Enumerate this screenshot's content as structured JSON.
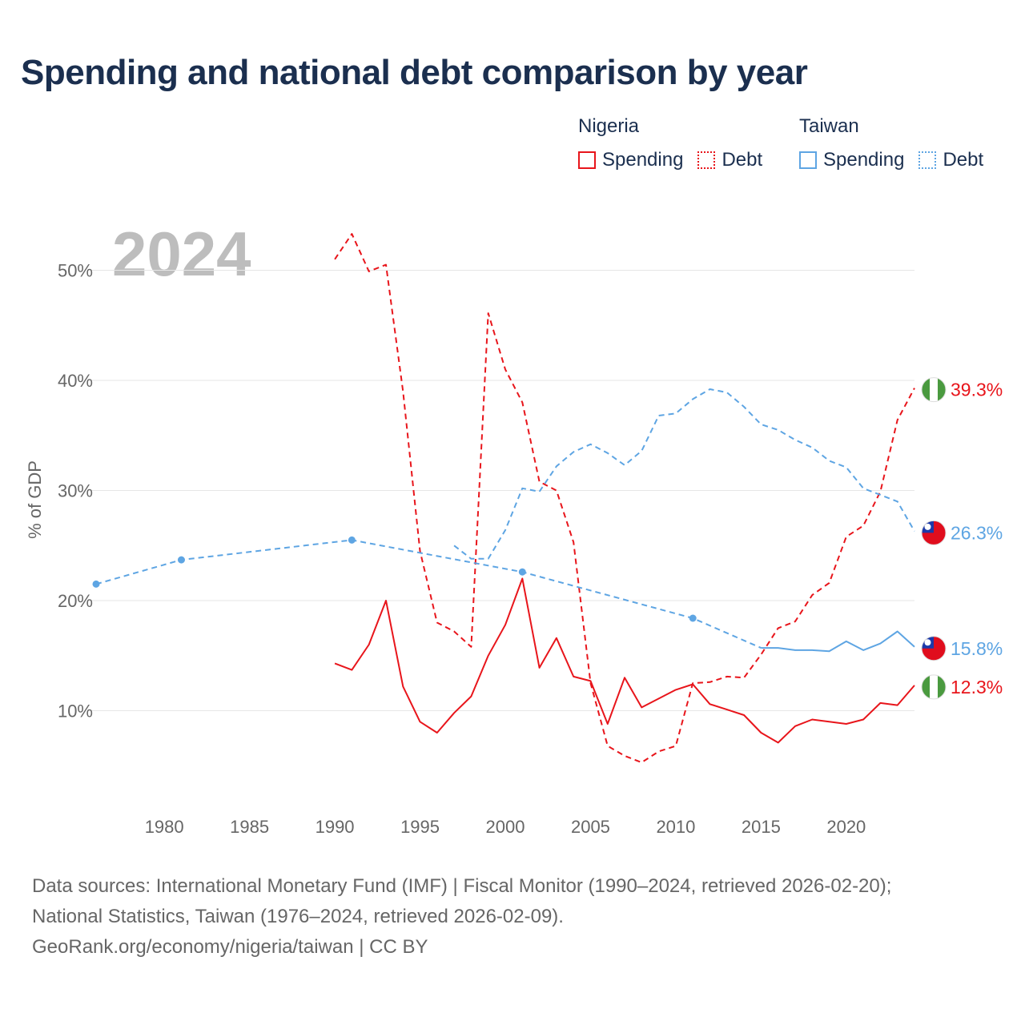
{
  "title": "Spending and national debt comparison by year",
  "legend": {
    "groups": [
      {
        "country": "Nigeria",
        "items": [
          {
            "label": "Spending",
            "style": "solid",
            "color": "#e8151b"
          },
          {
            "label": "Debt",
            "style": "dotted",
            "color": "#e8151b"
          }
        ]
      },
      {
        "country": "Taiwan",
        "items": [
          {
            "label": "Spending",
            "style": "solid",
            "color": "#5ea5e3"
          },
          {
            "label": "Debt",
            "style": "dotted",
            "color": "#5ea5e3"
          }
        ]
      }
    ]
  },
  "colors": {
    "nigeria": "#e8151b",
    "taiwan": "#5ea5e3",
    "title": "#1b2f4f",
    "grid": "#e6e6e6",
    "axis_text": "#666666"
  },
  "current_year": "2024",
  "chart_data": {
    "type": "line",
    "title": "Spending and national debt comparison by year",
    "xlabel": "",
    "ylabel": "% of GDP",
    "xlim": [
      1975,
      2024
    ],
    "ylim": [
      0,
      55
    ],
    "x_ticks": [
      1980,
      1985,
      1990,
      1995,
      2000,
      2005,
      2010,
      2015,
      2020
    ],
    "y_ticks": [
      {
        "value": 10,
        "label": "10%"
      },
      {
        "value": 20,
        "label": "20%"
      },
      {
        "value": 30,
        "label": "30%"
      },
      {
        "value": 40,
        "label": "40%"
      },
      {
        "value": 50,
        "label": "50%"
      }
    ],
    "grid": true,
    "series": [
      {
        "name": "Nigeria Spending",
        "country": "Nigeria",
        "metric": "Spending",
        "style": "solid",
        "color": "#e8151b",
        "end_label": "12.3%",
        "flag": "nigeria-flag-icon",
        "points": [
          [
            1990,
            14.3
          ],
          [
            1991,
            13.7
          ],
          [
            1992,
            16.0
          ],
          [
            1993,
            20.0
          ],
          [
            1994,
            12.2
          ],
          [
            1995,
            9.0
          ],
          [
            1996,
            8.0
          ],
          [
            1997,
            9.8
          ],
          [
            1998,
            11.3
          ],
          [
            1999,
            15.0
          ],
          [
            2000,
            17.8
          ],
          [
            2001,
            22.0
          ],
          [
            2002,
            13.9
          ],
          [
            2003,
            16.6
          ],
          [
            2004,
            13.1
          ],
          [
            2005,
            12.7
          ],
          [
            2006,
            8.8
          ],
          [
            2007,
            13.0
          ],
          [
            2008,
            10.3
          ],
          [
            2009,
            11.1
          ],
          [
            2010,
            11.9
          ],
          [
            2011,
            12.4
          ],
          [
            2012,
            10.6
          ],
          [
            2013,
            10.1
          ],
          [
            2014,
            9.6
          ],
          [
            2015,
            8.0
          ],
          [
            2016,
            7.1
          ],
          [
            2017,
            8.6
          ],
          [
            2018,
            9.2
          ],
          [
            2019,
            9.0
          ],
          [
            2020,
            8.8
          ],
          [
            2021,
            9.2
          ],
          [
            2022,
            10.7
          ],
          [
            2023,
            10.5
          ],
          [
            2024,
            12.3
          ]
        ]
      },
      {
        "name": "Nigeria Debt",
        "country": "Nigeria",
        "metric": "Debt",
        "style": "dashed",
        "color": "#e8151b",
        "end_label": "39.3%",
        "flag": "nigeria-flag-icon",
        "points": [
          [
            1990,
            51.0
          ],
          [
            1991,
            53.3
          ],
          [
            1992,
            49.9
          ],
          [
            1993,
            50.5
          ],
          [
            1994,
            39.0
          ],
          [
            1995,
            24.5
          ],
          [
            1996,
            18.0
          ],
          [
            1997,
            17.2
          ],
          [
            1998,
            15.8
          ],
          [
            1999,
            46.1
          ],
          [
            2000,
            41.0
          ],
          [
            2001,
            38.0
          ],
          [
            2002,
            30.8
          ],
          [
            2003,
            30.0
          ],
          [
            2004,
            25.3
          ],
          [
            2005,
            12.5
          ],
          [
            2006,
            6.8
          ],
          [
            2007,
            5.9
          ],
          [
            2008,
            5.3
          ],
          [
            2009,
            6.3
          ],
          [
            2010,
            6.8
          ],
          [
            2011,
            12.5
          ],
          [
            2012,
            12.6
          ],
          [
            2013,
            13.1
          ],
          [
            2014,
            13.0
          ],
          [
            2015,
            15.1
          ],
          [
            2016,
            17.5
          ],
          [
            2017,
            18.1
          ],
          [
            2018,
            20.5
          ],
          [
            2019,
            21.6
          ],
          [
            2020,
            25.8
          ],
          [
            2021,
            26.8
          ],
          [
            2022,
            29.9
          ],
          [
            2023,
            36.4
          ],
          [
            2024,
            39.3
          ]
        ]
      },
      {
        "name": "Taiwan Spending",
        "country": "Taiwan",
        "metric": "Spending",
        "style": "solid",
        "color": "#5ea5e3",
        "end_label": "15.8%",
        "flag": "taiwan-flag-icon",
        "points": [
          [
            2015,
            15.7
          ],
          [
            2016,
            15.7
          ],
          [
            2017,
            15.5
          ],
          [
            2018,
            15.5
          ],
          [
            2019,
            15.4
          ],
          [
            2020,
            16.3
          ],
          [
            2021,
            15.5
          ],
          [
            2022,
            16.1
          ],
          [
            2023,
            17.2
          ],
          [
            2024,
            15.8
          ]
        ]
      },
      {
        "name": "Taiwan Spending (long-run)",
        "country": "Taiwan",
        "metric": "Spending",
        "style": "dashed",
        "color": "#5ea5e3",
        "markers": [
          1976,
          1981,
          1991,
          2001,
          2011
        ],
        "points": [
          [
            1976,
            21.5
          ],
          [
            1981,
            23.7
          ],
          [
            1991,
            25.5
          ],
          [
            2001,
            22.6
          ],
          [
            2011,
            18.4
          ],
          [
            2015,
            15.7
          ]
        ]
      },
      {
        "name": "Taiwan Debt",
        "country": "Taiwan",
        "metric": "Debt",
        "style": "dashed",
        "color": "#5ea5e3",
        "end_label": "26.3%",
        "flag": "taiwan-flag-icon",
        "points": [
          [
            1997,
            25.0
          ],
          [
            1998,
            23.8
          ],
          [
            1999,
            23.8
          ],
          [
            2000,
            26.4
          ],
          [
            2001,
            30.2
          ],
          [
            2002,
            29.9
          ],
          [
            2003,
            32.2
          ],
          [
            2004,
            33.5
          ],
          [
            2005,
            34.2
          ],
          [
            2006,
            33.4
          ],
          [
            2007,
            32.3
          ],
          [
            2008,
            33.6
          ],
          [
            2009,
            36.8
          ],
          [
            2010,
            37.0
          ],
          [
            2011,
            38.3
          ],
          [
            2012,
            39.2
          ],
          [
            2013,
            38.9
          ],
          [
            2014,
            37.6
          ],
          [
            2015,
            36.0
          ],
          [
            2016,
            35.5
          ],
          [
            2017,
            34.6
          ],
          [
            2018,
            33.9
          ],
          [
            2019,
            32.7
          ],
          [
            2020,
            32.1
          ],
          [
            2021,
            30.2
          ],
          [
            2022,
            29.6
          ],
          [
            2023,
            29.0
          ],
          [
            2024,
            26.3
          ]
        ]
      }
    ]
  },
  "footer": {
    "line1": "Data sources: International Monetary Fund (IMF) | Fiscal Monitor (1990–2024, retrieved 2026-02-20);",
    "line2": "National Statistics, Taiwan (1976–2024, retrieved 2026-02-09).",
    "line3": "GeoRank.org/economy/nigeria/taiwan | CC BY"
  }
}
